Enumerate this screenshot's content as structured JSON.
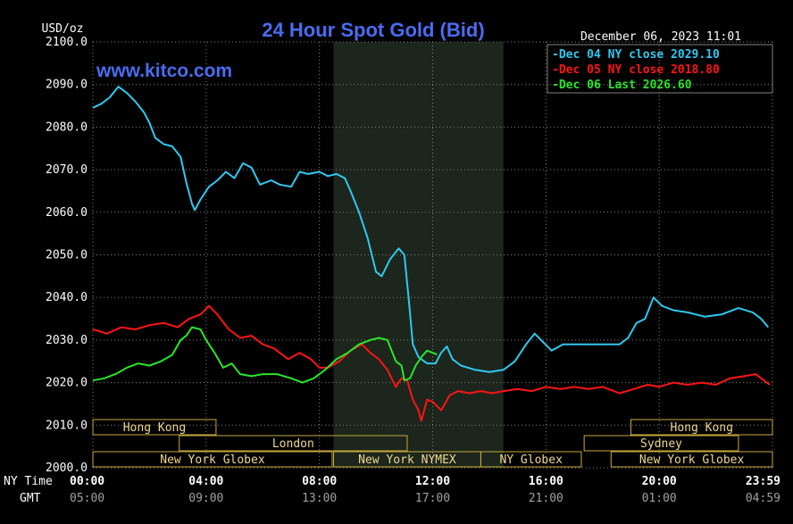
{
  "chart_data": {
    "type": "line",
    "title": "24 Hour Spot Gold (Bid)",
    "watermark": "www.kitco.com",
    "timestamp": "December 06, 2023 11:01",
    "y_unit": "USD/oz",
    "ylim": [
      2000,
      2100
    ],
    "y_ticks": [
      "2100.0",
      "2090.0",
      "2080.0",
      "2070.0",
      "2060.0",
      "2050.0",
      "2040.0",
      "2030.0",
      "2020.0",
      "2010.0",
      "2000.0"
    ],
    "x_range_hours": [
      0,
      24
    ],
    "x_row_label_ny": "NY Time",
    "x_row_label_gmt": "GMT",
    "x_ticks_ny": [
      "00:00",
      "04:00",
      "08:00",
      "12:00",
      "16:00",
      "20:00",
      "23:59"
    ],
    "x_ticks_gmt": [
      "05:00",
      "09:00",
      "13:00",
      "17:00",
      "21:00",
      "01:00",
      "04:59"
    ],
    "highlight_hours": [
      8.5,
      14.5
    ],
    "grid": true,
    "legend_placement": "top-right",
    "colors": {
      "background": "#000000",
      "grid": "#808080",
      "axis_text": "#ffffff",
      "title": "#4a6cf0",
      "highlight": "#1c261c",
      "session_box": "#c8aa3c",
      "session_text": "#f0d890"
    },
    "series": [
      {
        "name": "Dec 04 NY close 2029.10",
        "color": "#30c8f0",
        "points": [
          [
            0,
            2084.5
          ],
          [
            0.3,
            2085.5
          ],
          [
            0.6,
            2087
          ],
          [
            0.9,
            2089.5
          ],
          [
            1.2,
            2088
          ],
          [
            1.5,
            2086
          ],
          [
            1.8,
            2083.5
          ],
          [
            2.0,
            2081
          ],
          [
            2.2,
            2077.5
          ],
          [
            2.5,
            2076
          ],
          [
            2.8,
            2075.5
          ],
          [
            3.1,
            2073
          ],
          [
            3.3,
            2067
          ],
          [
            3.5,
            2062
          ],
          [
            3.6,
            2060.5
          ],
          [
            3.8,
            2063
          ],
          [
            4.1,
            2066
          ],
          [
            4.4,
            2067.5
          ],
          [
            4.7,
            2069.5
          ],
          [
            5.0,
            2068
          ],
          [
            5.3,
            2071.5
          ],
          [
            5.6,
            2070.5
          ],
          [
            5.9,
            2066.5
          ],
          [
            6.3,
            2067.5
          ],
          [
            6.6,
            2066.5
          ],
          [
            7.0,
            2066
          ],
          [
            7.3,
            2069.5
          ],
          [
            7.6,
            2069
          ],
          [
            8.0,
            2069.5
          ],
          [
            8.3,
            2068.5
          ],
          [
            8.6,
            2069
          ],
          [
            8.9,
            2068
          ],
          [
            9.1,
            2065
          ],
          [
            9.4,
            2060
          ],
          [
            9.7,
            2054
          ],
          [
            10.0,
            2046
          ],
          [
            10.2,
            2045
          ],
          [
            10.5,
            2049
          ],
          [
            10.8,
            2051.5
          ],
          [
            11.0,
            2050
          ],
          [
            11.15,
            2040
          ],
          [
            11.3,
            2029
          ],
          [
            11.5,
            2026
          ],
          [
            11.8,
            2024.5
          ],
          [
            12.1,
            2024.5
          ],
          [
            12.3,
            2027
          ],
          [
            12.5,
            2028.5
          ],
          [
            12.7,
            2025.5
          ],
          [
            13.0,
            2024
          ],
          [
            13.5,
            2023
          ],
          [
            14.0,
            2022.5
          ],
          [
            14.5,
            2023
          ],
          [
            14.9,
            2025
          ],
          [
            15.3,
            2029
          ],
          [
            15.6,
            2031.5
          ],
          [
            15.9,
            2029.5
          ],
          [
            16.2,
            2027.5
          ],
          [
            16.6,
            2029
          ],
          [
            17.2,
            2029
          ],
          [
            18.0,
            2029
          ],
          [
            18.6,
            2029
          ],
          [
            18.9,
            2030.5
          ],
          [
            19.2,
            2034
          ],
          [
            19.5,
            2035
          ],
          [
            19.8,
            2040
          ],
          [
            20.1,
            2038
          ],
          [
            20.5,
            2037
          ],
          [
            21.0,
            2036.5
          ],
          [
            21.6,
            2035.5
          ],
          [
            22.2,
            2036
          ],
          [
            22.8,
            2037.5
          ],
          [
            23.3,
            2036.5
          ],
          [
            23.6,
            2035
          ],
          [
            23.85,
            2033
          ]
        ]
      },
      {
        "name": "Dec 05 NY close 2018.80",
        "color": "#ff1414",
        "points": [
          [
            0,
            2032.5
          ],
          [
            0.5,
            2031.5
          ],
          [
            1.0,
            2033
          ],
          [
            1.5,
            2032.5
          ],
          [
            2.0,
            2033.5
          ],
          [
            2.5,
            2034
          ],
          [
            3.0,
            2033
          ],
          [
            3.4,
            2035
          ],
          [
            3.8,
            2036
          ],
          [
            4.1,
            2038
          ],
          [
            4.4,
            2036
          ],
          [
            4.8,
            2032.5
          ],
          [
            5.2,
            2030.5
          ],
          [
            5.6,
            2031
          ],
          [
            6.0,
            2029
          ],
          [
            6.4,
            2028
          ],
          [
            6.9,
            2025.5
          ],
          [
            7.3,
            2027
          ],
          [
            7.7,
            2025.5
          ],
          [
            8.0,
            2023.5
          ],
          [
            8.3,
            2023.5
          ],
          [
            8.7,
            2025
          ],
          [
            9.1,
            2027.5
          ],
          [
            9.5,
            2029
          ],
          [
            9.8,
            2027
          ],
          [
            10.1,
            2025.5
          ],
          [
            10.4,
            2023
          ],
          [
            10.7,
            2019
          ],
          [
            10.9,
            2021
          ],
          [
            11.1,
            2020.5
          ],
          [
            11.3,
            2016
          ],
          [
            11.5,
            2013.5
          ],
          [
            11.6,
            2011
          ],
          [
            11.8,
            2016
          ],
          [
            12.0,
            2015.5
          ],
          [
            12.3,
            2013.5
          ],
          [
            12.6,
            2017
          ],
          [
            12.9,
            2018
          ],
          [
            13.3,
            2017.5
          ],
          [
            13.7,
            2018
          ],
          [
            14.1,
            2017.5
          ],
          [
            14.5,
            2018
          ],
          [
            15.0,
            2018.5
          ],
          [
            15.5,
            2018
          ],
          [
            16.0,
            2019
          ],
          [
            16.5,
            2018.5
          ],
          [
            17.0,
            2019
          ],
          [
            17.5,
            2018.5
          ],
          [
            18.0,
            2019
          ],
          [
            18.6,
            2017.5
          ],
          [
            19.1,
            2018.5
          ],
          [
            19.6,
            2019.5
          ],
          [
            20.0,
            2019
          ],
          [
            20.5,
            2020
          ],
          [
            21.0,
            2019.5
          ],
          [
            21.5,
            2020
          ],
          [
            22.0,
            2019.5
          ],
          [
            22.5,
            2021
          ],
          [
            23.0,
            2021.5
          ],
          [
            23.4,
            2022
          ],
          [
            23.7,
            2020.5
          ],
          [
            23.9,
            2019.5
          ]
        ]
      },
      {
        "name": "Dec 06 Last 2026.60",
        "color": "#28e628",
        "points": [
          [
            0,
            2020.5
          ],
          [
            0.4,
            2021
          ],
          [
            0.8,
            2022
          ],
          [
            1.2,
            2023.5
          ],
          [
            1.6,
            2024.5
          ],
          [
            2.0,
            2024
          ],
          [
            2.4,
            2025
          ],
          [
            2.8,
            2026.5
          ],
          [
            3.1,
            2030
          ],
          [
            3.3,
            2031
          ],
          [
            3.5,
            2033
          ],
          [
            3.8,
            2032.5
          ],
          [
            4.0,
            2030
          ],
          [
            4.3,
            2027
          ],
          [
            4.6,
            2023.5
          ],
          [
            4.9,
            2024.5
          ],
          [
            5.2,
            2022
          ],
          [
            5.6,
            2021.5
          ],
          [
            6.0,
            2022
          ],
          [
            6.5,
            2022
          ],
          [
            7.0,
            2021
          ],
          [
            7.4,
            2020
          ],
          [
            7.8,
            2021
          ],
          [
            8.2,
            2023
          ],
          [
            8.6,
            2025.5
          ],
          [
            9.0,
            2027
          ],
          [
            9.4,
            2029
          ],
          [
            9.8,
            2030
          ],
          [
            10.1,
            2030.5
          ],
          [
            10.4,
            2030
          ],
          [
            10.7,
            2025
          ],
          [
            10.9,
            2024
          ],
          [
            11.0,
            2020.5
          ],
          [
            11.2,
            2021
          ],
          [
            11.4,
            2024
          ],
          [
            11.6,
            2026
          ],
          [
            11.8,
            2027.5
          ],
          [
            12.0,
            2027
          ],
          [
            12.15,
            2026.6
          ]
        ]
      }
    ],
    "sessions": [
      {
        "label": "Hong Kong",
        "start": 0,
        "end": 4.35,
        "row": 0
      },
      {
        "label": "London",
        "start": 3.05,
        "end": 11.1,
        "row": 1
      },
      {
        "label": "New York Globex",
        "start": 0,
        "end": 8.45,
        "row": 2
      },
      {
        "label": "New York NYMEX",
        "start": 8.5,
        "end": 13.7,
        "row": 2
      },
      {
        "label": "NY Globex",
        "start": 13.7,
        "end": 17.25,
        "row": 2
      },
      {
        "label": "Hong Kong",
        "start": 19.0,
        "end": 24,
        "row": 0
      },
      {
        "label": "Sydney",
        "start": 17.35,
        "end": 22.8,
        "row": 1
      },
      {
        "label": "New York Globex",
        "start": 18.3,
        "end": 24,
        "row": 2
      }
    ]
  }
}
